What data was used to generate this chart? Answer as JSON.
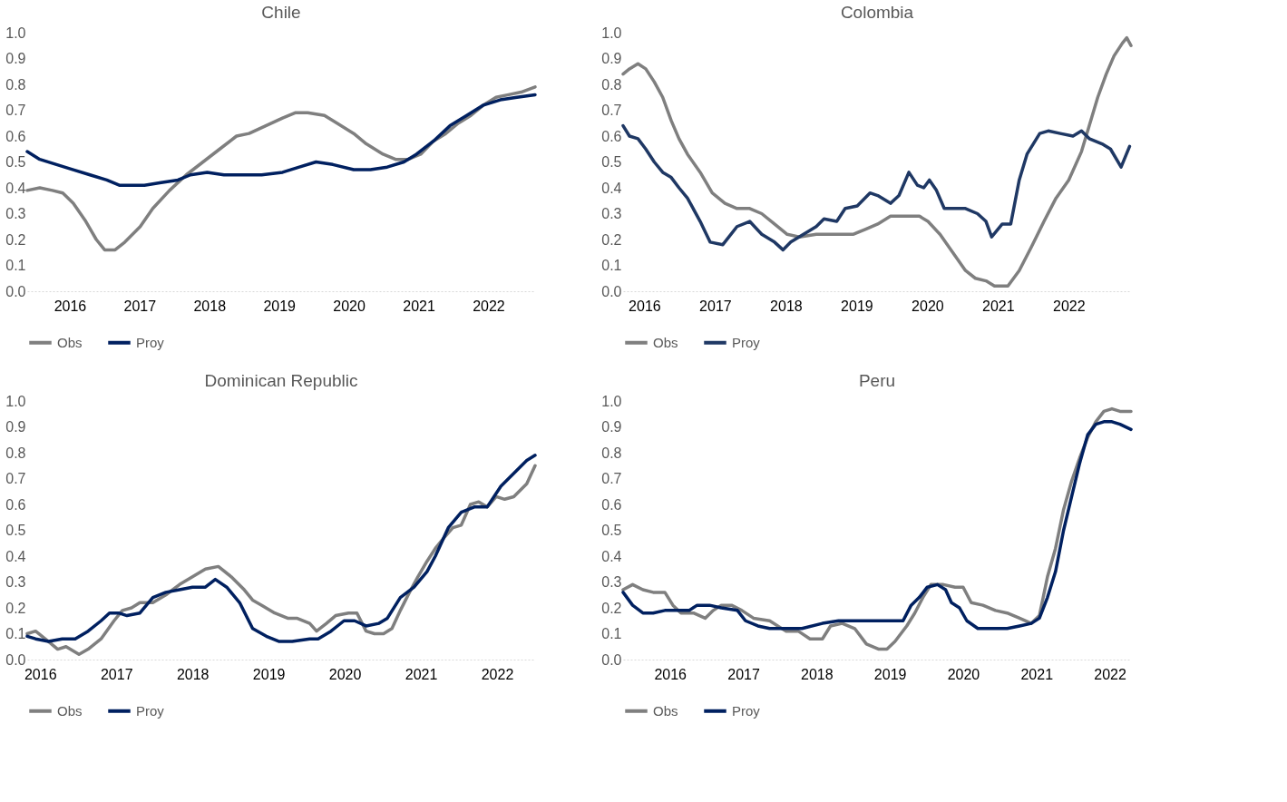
{
  "chart_data": [
    {
      "type": "line",
      "title": "Chile",
      "legend": "bottom",
      "grid": false,
      "line_style": "solid",
      "marker": "none",
      "xlim": [
        2015.39,
        2022.67
      ],
      "ylim": [
        0,
        1.0
      ],
      "xticks": [
        2016,
        2017,
        2018,
        2019,
        2020,
        2021,
        2022
      ],
      "yticks": [
        {
          "value": 0,
          "label": "0.0"
        },
        {
          "value": 0.1,
          "label": "0.1"
        },
        {
          "value": 0.2,
          "label": "0.2"
        },
        {
          "value": 0.3,
          "label": "0.3"
        },
        {
          "value": 0.4,
          "label": "0.4"
        },
        {
          "value": 0.5,
          "label": "0.5"
        },
        {
          "value": 0.6,
          "label": "0.6"
        },
        {
          "value": 0.7,
          "label": "0.7"
        },
        {
          "value": 0.8,
          "label": "0.8"
        },
        {
          "value": 0.9,
          "label": "0.9"
        },
        {
          "value": 1,
          "label": "1.0"
        }
      ],
      "series": [
        {
          "name": "Obs",
          "color": "#7f7f7f",
          "x": [
            2015.39,
            2015.57,
            2015.75,
            2015.9,
            2016.05,
            2016.23,
            2016.38,
            2016.5,
            2016.65,
            2016.79,
            2017.01,
            2017.19,
            2017.43,
            2017.67,
            2017.91,
            2018.15,
            2018.39,
            2018.57,
            2018.81,
            2019.05,
            2019.23,
            2019.41,
            2019.65,
            2019.83,
            2020.07,
            2020.25,
            2020.49,
            2020.67,
            2020.85,
            2021.03,
            2021.21,
            2021.39,
            2021.57,
            2021.75,
            2021.93,
            2022.11,
            2022.29,
            2022.47,
            2022.67
          ],
          "values": [
            0.39,
            0.4,
            0.39,
            0.38,
            0.34,
            0.27,
            0.2,
            0.16,
            0.16,
            0.19,
            0.25,
            0.32,
            0.39,
            0.45,
            0.5,
            0.55,
            0.6,
            0.61,
            0.64,
            0.67,
            0.69,
            0.69,
            0.68,
            0.65,
            0.61,
            0.57,
            0.53,
            0.51,
            0.51,
            0.53,
            0.58,
            0.61,
            0.65,
            0.68,
            0.72,
            0.75,
            0.76,
            0.77,
            0.79
          ]
        },
        {
          "name": "Proy",
          "color": "#002060",
          "x": [
            2015.39,
            2015.57,
            2015.81,
            2016.05,
            2016.29,
            2016.53,
            2016.71,
            2016.89,
            2017.07,
            2017.31,
            2017.55,
            2017.73,
            2017.97,
            2018.21,
            2018.45,
            2018.75,
            2019.05,
            2019.29,
            2019.53,
            2019.77,
            2020.07,
            2020.31,
            2020.55,
            2020.79,
            2020.97,
            2021.21,
            2021.45,
            2021.69,
            2021.93,
            2022.17,
            2022.41,
            2022.67
          ],
          "values": [
            0.54,
            0.51,
            0.49,
            0.47,
            0.45,
            0.43,
            0.41,
            0.41,
            0.41,
            0.42,
            0.43,
            0.45,
            0.46,
            0.45,
            0.45,
            0.45,
            0.46,
            0.48,
            0.5,
            0.49,
            0.47,
            0.47,
            0.48,
            0.5,
            0.53,
            0.58,
            0.64,
            0.68,
            0.72,
            0.74,
            0.75,
            0.76
          ]
        }
      ]
    },
    {
      "type": "line",
      "title": "Colombia",
      "legend": "bottom",
      "grid": false,
      "line_style": "solid",
      "marker": "none",
      "xlim": [
        2015.7,
        2022.88
      ],
      "ylim": [
        0,
        1.0
      ],
      "xticks": [
        2016,
        2017,
        2018,
        2019,
        2020,
        2021,
        2022
      ],
      "yticks": [
        {
          "value": 0,
          "label": "0.0"
        },
        {
          "value": 0.1,
          "label": "0.1"
        },
        {
          "value": 0.2,
          "label": "0.2"
        },
        {
          "value": 0.3,
          "label": "0.3"
        },
        {
          "value": 0.4,
          "label": "0.4"
        },
        {
          "value": 0.5,
          "label": "0.5"
        },
        {
          "value": 0.6,
          "label": "0.6"
        },
        {
          "value": 0.7,
          "label": "0.7"
        },
        {
          "value": 0.8,
          "label": "0.8"
        },
        {
          "value": 0.9,
          "label": "0.9"
        },
        {
          "value": 1,
          "label": "1.0"
        }
      ],
      "series": [
        {
          "name": "Obs",
          "color": "#7f7f7f",
          "x": [
            2015.7,
            2015.79,
            2015.91,
            2016.02,
            2016.14,
            2016.26,
            2016.38,
            2016.49,
            2016.61,
            2016.79,
            2016.96,
            2017.14,
            2017.31,
            2017.49,
            2017.66,
            2017.84,
            2018.02,
            2018.19,
            2018.43,
            2018.66,
            2018.95,
            2019.13,
            2019.3,
            2019.48,
            2019.66,
            2019.89,
            2020.01,
            2020.18,
            2020.36,
            2020.54,
            2020.68,
            2020.83,
            2020.95,
            2021.06,
            2021.14,
            2021.3,
            2021.47,
            2021.65,
            2021.82,
            2022.0,
            2022.18,
            2022.29,
            2022.41,
            2022.53,
            2022.64,
            2022.76,
            2022.82,
            2022.88
          ],
          "values": [
            0.84,
            0.86,
            0.88,
            0.86,
            0.81,
            0.75,
            0.66,
            0.59,
            0.53,
            0.46,
            0.38,
            0.34,
            0.32,
            0.32,
            0.3,
            0.26,
            0.22,
            0.21,
            0.22,
            0.22,
            0.22,
            0.24,
            0.26,
            0.29,
            0.29,
            0.29,
            0.27,
            0.22,
            0.15,
            0.08,
            0.05,
            0.04,
            0.02,
            0.02,
            0.02,
            0.08,
            0.17,
            0.27,
            0.36,
            0.43,
            0.54,
            0.64,
            0.75,
            0.84,
            0.91,
            0.96,
            0.98,
            0.95
          ]
        },
        {
          "name": "Proy",
          "color": "#1f3864",
          "x": [
            2015.7,
            2015.79,
            2015.91,
            2016.02,
            2016.14,
            2016.26,
            2016.38,
            2016.49,
            2016.61,
            2016.79,
            2016.93,
            2017.11,
            2017.31,
            2017.49,
            2017.66,
            2017.84,
            2017.96,
            2018.07,
            2018.25,
            2018.43,
            2018.54,
            2018.72,
            2018.84,
            2019.01,
            2019.19,
            2019.3,
            2019.48,
            2019.6,
            2019.74,
            2019.86,
            2019.95,
            2020.03,
            2020.13,
            2020.24,
            2020.42,
            2020.54,
            2020.71,
            2020.83,
            2020.91,
            2021.06,
            2021.18,
            2021.3,
            2021.41,
            2021.59,
            2021.71,
            2021.88,
            2022.06,
            2022.18,
            2022.29,
            2022.47,
            2022.59,
            2022.74,
            2022.86
          ],
          "values": [
            0.64,
            0.6,
            0.59,
            0.55,
            0.5,
            0.46,
            0.44,
            0.4,
            0.36,
            0.27,
            0.19,
            0.18,
            0.25,
            0.27,
            0.22,
            0.19,
            0.16,
            0.19,
            0.22,
            0.25,
            0.28,
            0.27,
            0.32,
            0.33,
            0.38,
            0.37,
            0.34,
            0.37,
            0.46,
            0.41,
            0.4,
            0.43,
            0.39,
            0.32,
            0.32,
            0.32,
            0.3,
            0.27,
            0.21,
            0.26,
            0.26,
            0.43,
            0.53,
            0.61,
            0.62,
            0.61,
            0.6,
            0.62,
            0.59,
            0.57,
            0.55,
            0.48,
            0.56
          ]
        }
      ]
    },
    {
      "type": "line",
      "title": "Dominican Republic",
      "legend": "bottom",
      "grid": false,
      "line_style": "solid",
      "marker": "none",
      "xlim": [
        2015.83,
        2022.5
      ],
      "ylim": [
        0,
        1.0
      ],
      "xticks": [
        2016,
        2017,
        2018,
        2019,
        2020,
        2021,
        2022
      ],
      "yticks": [
        {
          "value": 0,
          "label": "0.0"
        },
        {
          "value": 0.1,
          "label": "0.1"
        },
        {
          "value": 0.2,
          "label": "0.2"
        },
        {
          "value": 0.3,
          "label": "0.3"
        },
        {
          "value": 0.4,
          "label": "0.4"
        },
        {
          "value": 0.5,
          "label": "0.5"
        },
        {
          "value": 0.6,
          "label": "0.6"
        },
        {
          "value": 0.7,
          "label": "0.7"
        },
        {
          "value": 0.8,
          "label": "0.8"
        },
        {
          "value": 0.9,
          "label": "0.9"
        },
        {
          "value": 1,
          "label": "1.0"
        }
      ],
      "series": [
        {
          "name": "Obs",
          "color": "#7f7f7f",
          "x": [
            2015.83,
            2015.94,
            2016.11,
            2016.23,
            2016.34,
            2016.51,
            2016.63,
            2016.8,
            2016.97,
            2017.08,
            2017.2,
            2017.31,
            2017.48,
            2017.65,
            2017.83,
            2018.0,
            2018.17,
            2018.34,
            2018.51,
            2018.68,
            2018.79,
            2018.91,
            2019.08,
            2019.25,
            2019.37,
            2019.54,
            2019.63,
            2019.76,
            2019.88,
            2020.05,
            2020.16,
            2020.28,
            2020.39,
            2020.51,
            2020.62,
            2020.73,
            2020.85,
            2020.96,
            2021.08,
            2021.19,
            2021.3,
            2021.42,
            2021.53,
            2021.65,
            2021.76,
            2021.87,
            2021.99,
            2022.1,
            2022.22,
            2022.39,
            2022.5
          ],
          "values": [
            0.1,
            0.11,
            0.07,
            0.04,
            0.05,
            0.02,
            0.04,
            0.08,
            0.15,
            0.19,
            0.2,
            0.22,
            0.22,
            0.25,
            0.29,
            0.32,
            0.35,
            0.36,
            0.32,
            0.27,
            0.23,
            0.21,
            0.18,
            0.16,
            0.16,
            0.14,
            0.11,
            0.14,
            0.17,
            0.18,
            0.18,
            0.11,
            0.1,
            0.1,
            0.12,
            0.19,
            0.26,
            0.32,
            0.38,
            0.43,
            0.47,
            0.51,
            0.52,
            0.6,
            0.61,
            0.59,
            0.63,
            0.62,
            0.63,
            0.68,
            0.75
          ]
        },
        {
          "name": "Proy",
          "color": "#002060",
          "x": [
            2015.83,
            2015.94,
            2016.11,
            2016.29,
            2016.46,
            2016.63,
            2016.8,
            2016.91,
            2017.03,
            2017.14,
            2017.31,
            2017.48,
            2017.65,
            2017.83,
            2018.0,
            2018.17,
            2018.3,
            2018.45,
            2018.62,
            2018.79,
            2018.97,
            2019.14,
            2019.31,
            2019.54,
            2019.65,
            2019.82,
            2019.99,
            2020.13,
            2020.28,
            2020.45,
            2020.56,
            2020.73,
            2020.91,
            2021.08,
            2021.19,
            2021.36,
            2021.53,
            2021.7,
            2021.87,
            2022.05,
            2022.22,
            2022.39,
            2022.5
          ],
          "values": [
            0.09,
            0.08,
            0.07,
            0.08,
            0.08,
            0.11,
            0.15,
            0.18,
            0.18,
            0.17,
            0.18,
            0.24,
            0.26,
            0.27,
            0.28,
            0.28,
            0.31,
            0.28,
            0.22,
            0.12,
            0.09,
            0.07,
            0.07,
            0.08,
            0.08,
            0.11,
            0.15,
            0.15,
            0.13,
            0.14,
            0.16,
            0.24,
            0.28,
            0.34,
            0.4,
            0.51,
            0.57,
            0.59,
            0.59,
            0.67,
            0.72,
            0.77,
            0.79
          ]
        }
      ]
    },
    {
      "type": "line",
      "title": "Peru",
      "legend": "bottom",
      "grid": false,
      "line_style": "solid",
      "marker": "none",
      "xlim": [
        2015.36,
        2022.29
      ],
      "ylim": [
        0,
        1.0
      ],
      "xticks": [
        2016,
        2017,
        2018,
        2019,
        2020,
        2021,
        2022
      ],
      "yticks": [
        {
          "value": 0,
          "label": "0.0"
        },
        {
          "value": 0.1,
          "label": "0.1"
        },
        {
          "value": 0.2,
          "label": "0.2"
        },
        {
          "value": 0.3,
          "label": "0.3"
        },
        {
          "value": 0.4,
          "label": "0.4"
        },
        {
          "value": 0.5,
          "label": "0.5"
        },
        {
          "value": 0.6,
          "label": "0.6"
        },
        {
          "value": 0.7,
          "label": "0.7"
        },
        {
          "value": 0.8,
          "label": "0.8"
        },
        {
          "value": 0.9,
          "label": "0.9"
        },
        {
          "value": 1,
          "label": "1.0"
        }
      ],
      "series": [
        {
          "name": "Obs",
          "color": "#7f7f7f",
          "x": [
            2015.36,
            2015.49,
            2015.63,
            2015.77,
            2015.93,
            2016.04,
            2016.15,
            2016.32,
            2016.48,
            2016.59,
            2016.7,
            2016.84,
            2016.98,
            2017.14,
            2017.36,
            2017.58,
            2017.75,
            2017.91,
            2018.08,
            2018.19,
            2018.35,
            2018.52,
            2018.68,
            2018.85,
            2018.96,
            2019.07,
            2019.23,
            2019.34,
            2019.45,
            2019.56,
            2019.73,
            2019.89,
            2020.0,
            2020.11,
            2020.27,
            2020.44,
            2020.6,
            2020.77,
            2020.93,
            2021.04,
            2021.15,
            2021.26,
            2021.37,
            2021.48,
            2021.59,
            2021.7,
            2021.81,
            2021.92,
            2022.03,
            2022.14,
            2022.29
          ],
          "values": [
            0.27,
            0.29,
            0.27,
            0.26,
            0.26,
            0.21,
            0.18,
            0.18,
            0.16,
            0.19,
            0.21,
            0.21,
            0.19,
            0.16,
            0.15,
            0.11,
            0.11,
            0.08,
            0.08,
            0.13,
            0.14,
            0.12,
            0.06,
            0.04,
            0.04,
            0.07,
            0.13,
            0.18,
            0.24,
            0.29,
            0.29,
            0.28,
            0.28,
            0.22,
            0.21,
            0.19,
            0.18,
            0.16,
            0.14,
            0.17,
            0.32,
            0.43,
            0.58,
            0.69,
            0.78,
            0.86,
            0.92,
            0.96,
            0.97,
            0.96,
            0.96
          ]
        },
        {
          "name": "Proy",
          "color": "#002060",
          "x": [
            2015.36,
            2015.49,
            2015.63,
            2015.77,
            2015.93,
            2016.1,
            2016.26,
            2016.37,
            2016.54,
            2016.7,
            2016.92,
            2017.03,
            2017.2,
            2017.36,
            2017.58,
            2017.8,
            2018.08,
            2018.3,
            2018.52,
            2018.74,
            2018.96,
            2019.18,
            2019.29,
            2019.4,
            2019.51,
            2019.65,
            2019.76,
            2019.84,
            2019.95,
            2020.05,
            2020.2,
            2020.38,
            2020.6,
            2020.77,
            2020.93,
            2021.04,
            2021.15,
            2021.26,
            2021.37,
            2021.48,
            2021.59,
            2021.7,
            2021.81,
            2021.92,
            2022.03,
            2022.14,
            2022.29
          ],
          "values": [
            0.26,
            0.21,
            0.18,
            0.18,
            0.19,
            0.19,
            0.19,
            0.21,
            0.21,
            0.2,
            0.19,
            0.15,
            0.13,
            0.12,
            0.12,
            0.12,
            0.14,
            0.15,
            0.15,
            0.15,
            0.15,
            0.15,
            0.21,
            0.24,
            0.28,
            0.29,
            0.27,
            0.22,
            0.2,
            0.15,
            0.12,
            0.12,
            0.12,
            0.13,
            0.14,
            0.16,
            0.24,
            0.34,
            0.5,
            0.63,
            0.76,
            0.87,
            0.91,
            0.92,
            0.92,
            0.91,
            0.89
          ]
        }
      ]
    }
  ]
}
